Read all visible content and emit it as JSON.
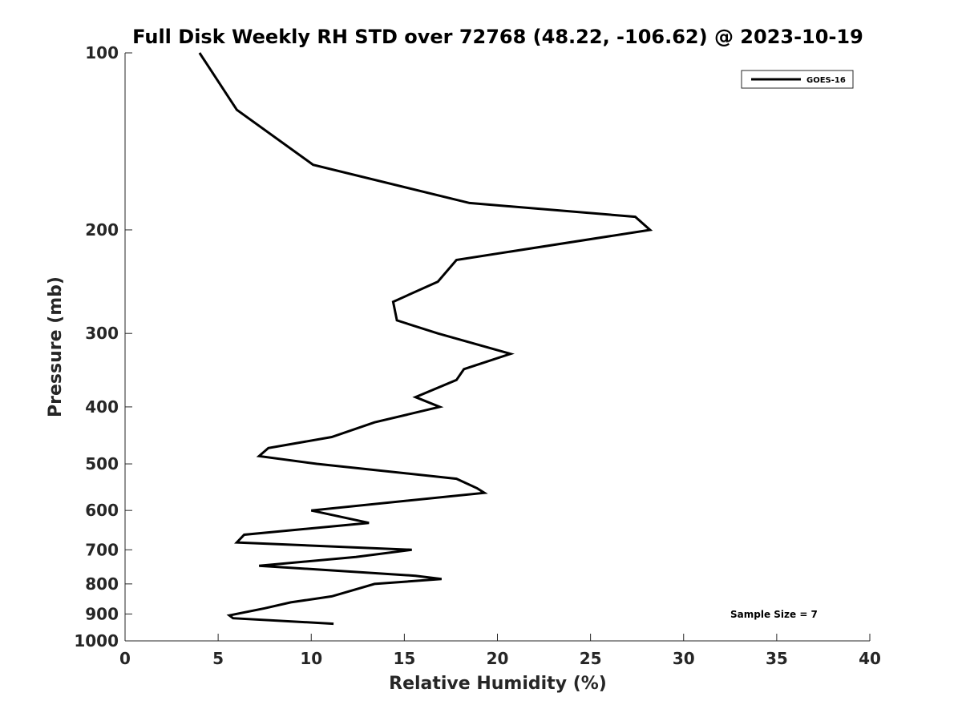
{
  "chart_data": {
    "type": "line",
    "title": "Full Disk Weekly RH STD over 72768 (48.22, -106.62) @ 2023-10-19",
    "xlabel": "Relative Humidity (%)",
    "ylabel": "Pressure (mb)",
    "xlim": [
      0,
      40
    ],
    "ylim": [
      1000,
      100
    ],
    "y_scale": "log",
    "y_reversed": true,
    "x_ticks": [
      0,
      5,
      10,
      15,
      20,
      25,
      30,
      35,
      40
    ],
    "y_ticks": [
      100,
      200,
      300,
      400,
      500,
      600,
      700,
      800,
      900,
      1000
    ],
    "grid": false,
    "legend_position": "top-right",
    "annotation": "Sample Size = 7",
    "series": [
      {
        "name": "GOES-16",
        "color": "#000000",
        "points": [
          [
            4.0,
            100
          ],
          [
            6.0,
            125
          ],
          [
            10.1,
            155
          ],
          [
            18.5,
            180
          ],
          [
            27.4,
            190
          ],
          [
            28.2,
            200
          ],
          [
            17.8,
            225
          ],
          [
            16.8,
            245
          ],
          [
            14.4,
            265
          ],
          [
            14.6,
            285
          ],
          [
            16.8,
            300
          ],
          [
            20.7,
            325
          ],
          [
            18.2,
            345
          ],
          [
            17.8,
            360
          ],
          [
            15.6,
            385
          ],
          [
            16.9,
            400
          ],
          [
            13.4,
            425
          ],
          [
            11.1,
            450
          ],
          [
            7.7,
            470
          ],
          [
            7.2,
            485
          ],
          [
            10.3,
            500
          ],
          [
            17.8,
            530
          ],
          [
            18.9,
            550
          ],
          [
            19.3,
            560
          ],
          [
            10.0,
            600
          ],
          [
            13.1,
            630
          ],
          [
            6.4,
            660
          ],
          [
            6.0,
            680
          ],
          [
            15.4,
            700
          ],
          [
            12.4,
            720
          ],
          [
            7.2,
            745
          ],
          [
            15.6,
            775
          ],
          [
            17.0,
            785
          ],
          [
            13.4,
            800
          ],
          [
            11.1,
            840
          ],
          [
            8.9,
            860
          ],
          [
            7.5,
            880
          ],
          [
            5.6,
            905
          ],
          [
            5.8,
            915
          ],
          [
            11.2,
            935
          ]
        ]
      }
    ]
  }
}
